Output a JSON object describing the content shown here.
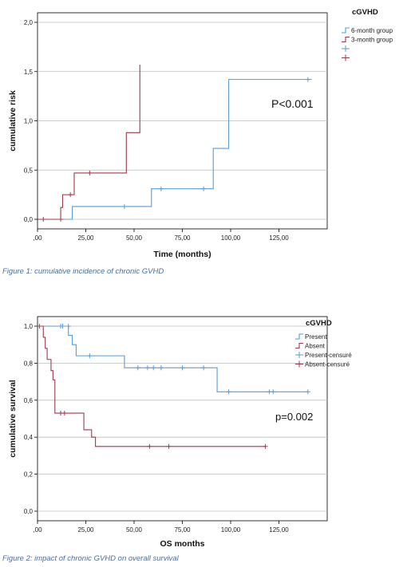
{
  "colors": {
    "blue": "#5b9bd5",
    "red": "#9e3a4f",
    "grid": "#bdbdbd",
    "axis": "#000000"
  },
  "captions": [
    "Figure 1: cumulative incidence of chronic GVHD",
    "Figure 2: impact of chronic GVHD on overall survival"
  ],
  "chart_data": [
    {
      "type": "line",
      "step": true,
      "xlabel": "Time (months)",
      "ylabel": "cumulative risk",
      "xlim": [
        0,
        150
      ],
      "ylim": [
        0,
        2.0
      ],
      "xticks": [
        0,
        25,
        50,
        75,
        100,
        125
      ],
      "xtick_labels": [
        ",00",
        "25,00",
        "50,00",
        "75,00",
        "100,00",
        "125,00"
      ],
      "yticks": [
        0,
        0.5,
        1.0,
        1.5,
        2.0
      ],
      "ytick_labels": [
        "0,0",
        "0,5",
        "1,0",
        "1,5",
        "2,0"
      ],
      "grid": "horizontal",
      "legend": {
        "title": "cGVHD",
        "placement": "top-right",
        "entries": [
          {
            "label": "6-month group",
            "kind": "line",
            "color": "#5b9bd5"
          },
          {
            "label": "3-month group",
            "kind": "line",
            "color": "#9e3a4f"
          },
          {
            "label": "",
            "kind": "censor",
            "color": "#5b9bd5"
          },
          {
            "label": "",
            "kind": "censor",
            "color": "#9e3a4f"
          }
        ]
      },
      "annotation": "P<0.001",
      "series": [
        {
          "name": "6-month group",
          "color": "#5b9bd5",
          "x": [
            12,
            18,
            59,
            91,
            99,
            142
          ],
          "y": [
            0,
            0.13,
            0.31,
            0.72,
            1.42,
            1.42
          ],
          "censored": [
            [
              45,
              0.13
            ],
            [
              64,
              0.31
            ],
            [
              86,
              0.31
            ],
            [
              140,
              1.42
            ]
          ]
        },
        {
          "name": "3-month group",
          "color": "#9e3a4f",
          "x": [
            0,
            12,
            13,
            19,
            46,
            53
          ],
          "y": [
            0,
            0.12,
            0.25,
            0.47,
            0.88,
            1.57
          ],
          "censored": [
            [
              3,
              0
            ],
            [
              12,
              0
            ],
            [
              17,
              0.25
            ],
            [
              27,
              0.47
            ]
          ]
        }
      ]
    },
    {
      "type": "line",
      "step": true,
      "xlabel": "OS months",
      "ylabel": "cumulative survival",
      "xlim": [
        0,
        150
      ],
      "ylim": [
        0,
        1.0
      ],
      "xticks": [
        0,
        25,
        50,
        75,
        100,
        125
      ],
      "xtick_labels": [
        ",00",
        "25,00",
        "50,00",
        "75,00",
        "100,00",
        "125,00"
      ],
      "yticks": [
        0,
        0.2,
        0.4,
        0.6,
        0.8,
        1.0
      ],
      "ytick_labels": [
        "0,0",
        "0,2",
        "0,4",
        "0,6",
        "0,8",
        "1,0"
      ],
      "grid": "horizontal",
      "legend": {
        "title": "cGVHD",
        "placement": "top-right",
        "entries": [
          {
            "label": "Present",
            "kind": "line",
            "color": "#5b9bd5"
          },
          {
            "label": "Absent",
            "kind": "line",
            "color": "#9e3a4f"
          },
          {
            "label": "Present-censuré",
            "kind": "censor",
            "color": "#5b9bd5"
          },
          {
            "label": "Absent-censuré",
            "kind": "censor",
            "color": "#9e3a4f"
          }
        ]
      },
      "annotation": "p=0.002",
      "series": [
        {
          "name": "Present",
          "color": "#5b9bd5",
          "x": [
            0,
            16,
            18,
            20,
            45,
            93,
            140
          ],
          "y": [
            1.0,
            0.95,
            0.9,
            0.84,
            0.775,
            0.645,
            0.645
          ],
          "censored": [
            [
              12,
              1.0
            ],
            [
              13,
              1.0
            ],
            [
              16,
              1.0
            ],
            [
              27,
              0.84
            ],
            [
              52,
              0.775
            ],
            [
              57,
              0.775
            ],
            [
              60,
              0.775
            ],
            [
              64,
              0.775
            ],
            [
              75,
              0.775
            ],
            [
              86,
              0.775
            ],
            [
              99,
              0.645
            ],
            [
              120,
              0.645
            ],
            [
              122,
              0.645
            ],
            [
              140,
              0.645
            ]
          ]
        },
        {
          "name": "Absent",
          "color": "#9e3a4f",
          "x": [
            0,
            3,
            4,
            5,
            7,
            8,
            9,
            24,
            28,
            30,
            118
          ],
          "y": [
            1.0,
            0.94,
            0.88,
            0.82,
            0.76,
            0.71,
            0.53,
            0.44,
            0.4,
            0.35,
            0.35
          ],
          "censored": [
            [
              1,
              1.0
            ],
            [
              12,
              0.53
            ],
            [
              14,
              0.53
            ],
            [
              58,
              0.35
            ],
            [
              68,
              0.35
            ],
            [
              118,
              0.35
            ]
          ]
        }
      ]
    }
  ]
}
